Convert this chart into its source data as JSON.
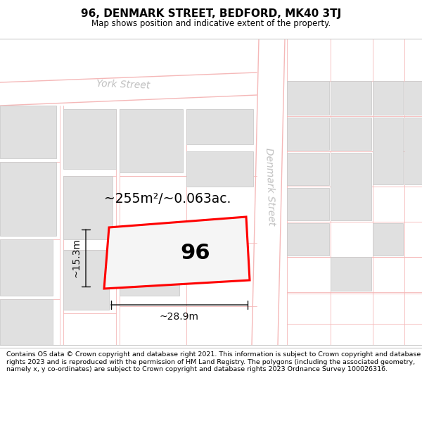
{
  "title": "96, DENMARK STREET, BEDFORD, MK40 3TJ",
  "subtitle": "Map shows position and indicative extent of the property.",
  "footer": "Contains OS data © Crown copyright and database right 2021. This information is subject to Crown copyright and database rights 2023 and is reproduced with the permission of HM Land Registry. The polygons (including the associated geometry, namely x, y co-ordinates) are subject to Crown copyright and database rights 2023 Ordnance Survey 100026316.",
  "map_bg": "#f7f7f7",
  "block_color": "#e0e0e0",
  "block_edge": "#e0e0e0",
  "road_line_color": "#f5b8b8",
  "highlight_color": "#ff0000",
  "highlight_fill": "#f5f5f5",
  "street_label_color": "#c0c0c0",
  "dim_color": "#333333",
  "label_96": "96",
  "area_label": "~255m²/~0.063ac.",
  "dim_width": "~28.9m",
  "dim_height": "~15.3m",
  "street_name_denmark": "Denmark Street",
  "street_name_york": "York Street"
}
